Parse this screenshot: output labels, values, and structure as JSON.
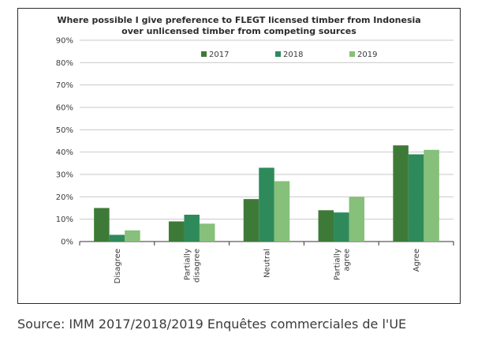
{
  "chart_data": {
    "type": "bar",
    "title_line1": "Where possible I give preference to FLEGT licensed timber from Indonesia",
    "title_line2": "over unlicensed timber from competing sources",
    "categories": [
      [
        "Disagree"
      ],
      [
        "Partially",
        "disagree"
      ],
      [
        "Neutral"
      ],
      [
        "Partially",
        "agree"
      ],
      [
        "Agree"
      ]
    ],
    "series": [
      {
        "name": "2017",
        "color": "#3e7a37",
        "values": [
          15,
          9,
          19,
          14,
          43
        ]
      },
      {
        "name": "2018",
        "color": "#2e8a5a",
        "values": [
          3,
          12,
          33,
          13,
          39
        ]
      },
      {
        "name": "2019",
        "color": "#86c07a",
        "values": [
          5,
          8,
          27,
          20,
          41
        ]
      }
    ],
    "y_ticks": [
      "0%",
      "10%",
      "20%",
      "30%",
      "40%",
      "50%",
      "60%",
      "70%",
      "80%",
      "90%"
    ],
    "ylim": [
      0,
      90
    ],
    "grid": true,
    "legend_position": "top-right"
  },
  "caption": "Source: IMM 2017/2018/2019 Enquêtes commerciales de l'UE"
}
